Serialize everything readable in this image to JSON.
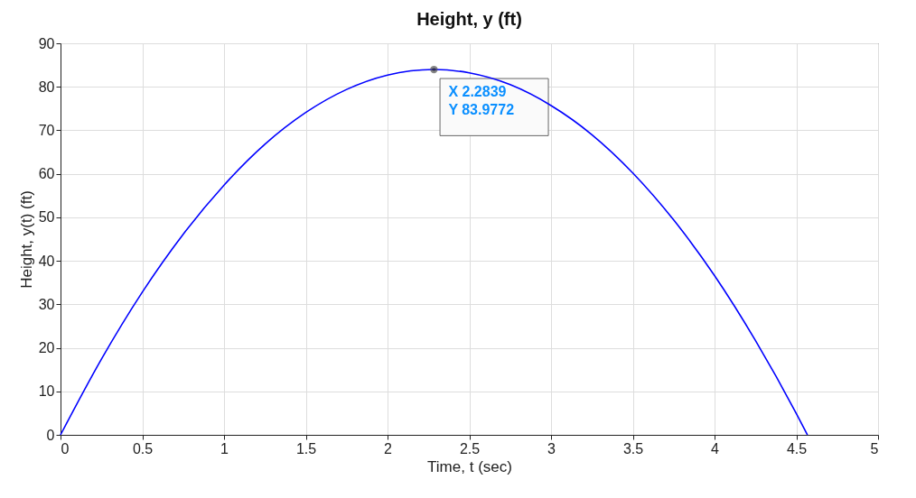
{
  "chart_data": {
    "type": "line",
    "title": "Height, y (ft)",
    "xlabel": "Time, t (sec)",
    "ylabel": "Height, y(t) (ft)",
    "x": [
      0,
      0.25,
      0.5,
      0.75,
      1,
      1.25,
      1.5,
      1.75,
      2,
      2.2839,
      2.5,
      2.75,
      3,
      3.25,
      3.5,
      3.75,
      4,
      4.25,
      4.5,
      4.5678
    ],
    "series": [
      {
        "color": "#0000ff",
        "values": [
          0,
          17.4,
          32.8,
          46.1,
          57.4,
          66.8,
          74.1,
          79.4,
          82.7,
          84.0,
          83.2,
          80.5,
          75.7,
          69.0,
          60.2,
          49.4,
          36.6,
          21.7,
          4.9,
          0
        ]
      }
    ],
    "xlim": [
      0,
      5
    ],
    "xticks": [
      0,
      0.5,
      1,
      1.5,
      2,
      2.5,
      3,
      3.5,
      4,
      4.5,
      5
    ],
    "ylim": [
      0,
      90
    ],
    "yticks": [
      0,
      10,
      20,
      30,
      40,
      50,
      60,
      70,
      80,
      90
    ],
    "grid": true,
    "marker": "none",
    "line_style": "solid",
    "annotations": [
      {
        "text": "X 2.2839\nY 83.9772",
        "x": 2.2839,
        "y": 83.9772
      }
    ]
  }
}
